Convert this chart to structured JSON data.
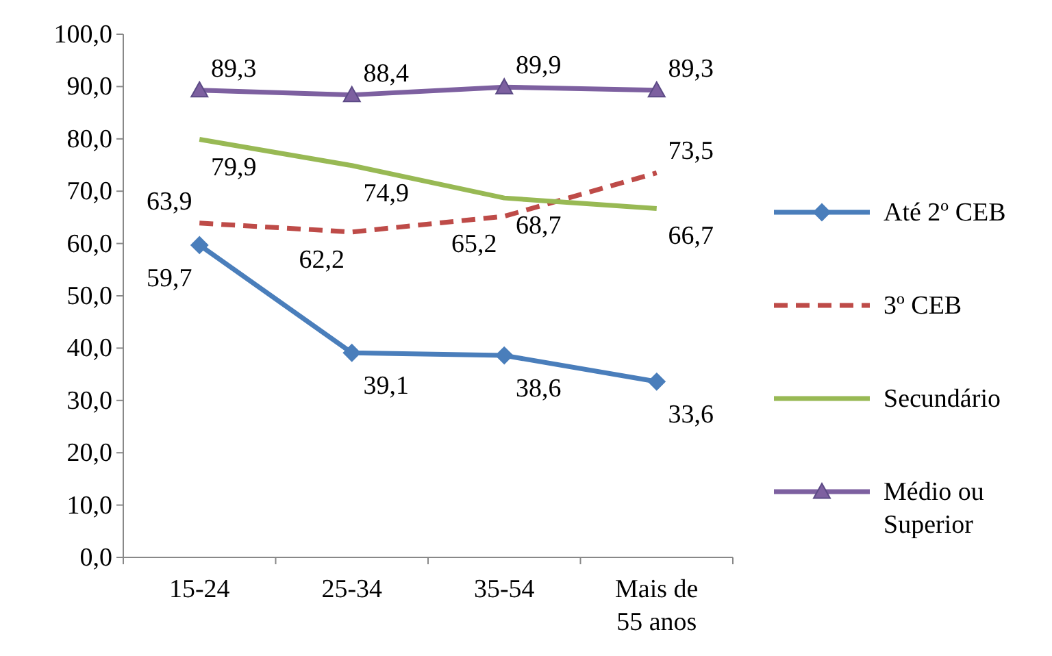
{
  "chart_data": {
    "type": "line",
    "categories": [
      "15-24",
      "25-34",
      "35-54",
      "Mais de 55 anos"
    ],
    "ylim": [
      0,
      100
    ],
    "yticks": [
      {
        "value": 0,
        "label": "0,0"
      },
      {
        "value": 10,
        "label": "10,0"
      },
      {
        "value": 20,
        "label": "20,0"
      },
      {
        "value": 30,
        "label": "30,0"
      },
      {
        "value": 40,
        "label": "40,0"
      },
      {
        "value": 50,
        "label": "50,0"
      },
      {
        "value": 60,
        "label": "60,0"
      },
      {
        "value": 70,
        "label": "70,0"
      },
      {
        "value": 80,
        "label": "80,0"
      },
      {
        "value": 90,
        "label": "90,0"
      },
      {
        "value": 100,
        "label": "100,0"
      }
    ],
    "grid": false,
    "legend": "right",
    "series": [
      {
        "name": "Até 2º CEB",
        "color": "#4a7ebb",
        "marker": "diamond",
        "line_style": "solid",
        "values": [
          59.7,
          39.1,
          38.6,
          33.6
        ],
        "value_labels": [
          "59,7",
          "39,1",
          "38,6",
          "33,6"
        ]
      },
      {
        "name": "3º CEB",
        "color": "#be4b48",
        "marker": "none",
        "line_style": "dashed",
        "values": [
          63.9,
          62.2,
          65.2,
          73.5
        ],
        "value_labels": [
          "63,9",
          "62,2",
          "65,2",
          "73,5"
        ]
      },
      {
        "name": "Secundário",
        "color": "#98b954",
        "marker": "none",
        "line_style": "solid",
        "values": [
          79.9,
          74.9,
          68.7,
          66.7
        ],
        "value_labels": [
          "79,9",
          "74,9",
          "68,7",
          "66,7"
        ]
      },
      {
        "name": "Médio ou Superior",
        "color": "#7d60a0",
        "marker": "triangle",
        "line_style": "solid",
        "values": [
          89.3,
          88.4,
          89.9,
          89.3
        ],
        "value_labels": [
          "89,3",
          "88,4",
          "89,9",
          "89,3"
        ]
      }
    ]
  }
}
